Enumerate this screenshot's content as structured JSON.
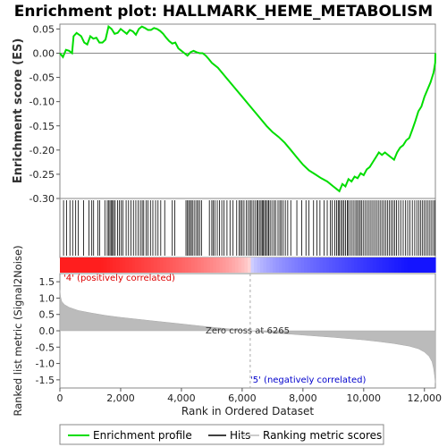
{
  "chart_data": {
    "type": "line",
    "title": "Enrichment plot: HALLMARK_HEME_METABOLISM",
    "es_panel": {
      "ylabel": "Enrichment score (ES)",
      "ylim": [
        -0.3,
        0.06
      ],
      "yticks": [
        -0.3,
        -0.25,
        -0.2,
        -0.15,
        -0.1,
        -0.05,
        0.0,
        0.05
      ],
      "ytick_labels": [
        "-0.30",
        "-0.25",
        "-0.20",
        "-0.15",
        "-0.10",
        "-0.05",
        "0.00",
        "0.05"
      ],
      "series": [
        {
          "name": "Enrichment profile",
          "color": "#00dd00",
          "x": [
            0,
            100,
            200,
            300,
            400,
            450,
            550,
            700,
            800,
            900,
            1000,
            1100,
            1200,
            1300,
            1400,
            1500,
            1600,
            1700,
            1800,
            1900,
            2000,
            2100,
            2200,
            2300,
            2400,
            2500,
            2600,
            2700,
            2800,
            2900,
            3000,
            3100,
            3200,
            3300,
            3400,
            3500,
            3600,
            3700,
            3800,
            3900,
            4000,
            4100,
            4200,
            4300,
            4400,
            4500,
            4600,
            4700,
            4800,
            4900,
            5000,
            5200,
            5400,
            5600,
            5800,
            6000,
            6200,
            6400,
            6600,
            6800,
            7000,
            7200,
            7400,
            7600,
            7800,
            8000,
            8200,
            8400,
            8600,
            8800,
            9000,
            9100,
            9200,
            9300,
            9400,
            9500,
            9600,
            9700,
            9800,
            9900,
            10000,
            10100,
            10200,
            10300,
            10400,
            10500,
            10600,
            10700,
            10800,
            10900,
            11000,
            11100,
            11200,
            11300,
            11400,
            11500,
            11600,
            11700,
            11800,
            11900,
            12000,
            12100,
            12200,
            12300,
            12355,
            12360
          ],
          "y": [
            0.0,
            -0.008,
            0.007,
            0.005,
            0.0,
            0.035,
            0.042,
            0.035,
            0.022,
            0.018,
            0.035,
            0.03,
            0.032,
            0.022,
            0.022,
            0.028,
            0.055,
            0.05,
            0.04,
            0.042,
            0.05,
            0.045,
            0.04,
            0.048,
            0.045,
            0.038,
            0.05,
            0.055,
            0.052,
            0.048,
            0.048,
            0.052,
            0.05,
            0.046,
            0.04,
            0.032,
            0.025,
            0.02,
            0.022,
            0.01,
            0.005,
            0.0,
            -0.005,
            0.002,
            0.005,
            0.002,
            0.0,
            0.0,
            -0.005,
            -0.012,
            -0.02,
            -0.03,
            -0.045,
            -0.06,
            -0.075,
            -0.09,
            -0.105,
            -0.12,
            -0.135,
            -0.15,
            -0.163,
            -0.173,
            -0.185,
            -0.2,
            -0.215,
            -0.23,
            -0.242,
            -0.25,
            -0.258,
            -0.265,
            -0.275,
            -0.28,
            -0.285,
            -0.27,
            -0.275,
            -0.26,
            -0.265,
            -0.255,
            -0.258,
            -0.248,
            -0.252,
            -0.24,
            -0.235,
            -0.225,
            -0.215,
            -0.205,
            -0.21,
            -0.205,
            -0.21,
            -0.215,
            -0.22,
            -0.205,
            -0.195,
            -0.19,
            -0.18,
            -0.175,
            -0.158,
            -0.14,
            -0.12,
            -0.11,
            -0.09,
            -0.075,
            -0.06,
            -0.04,
            -0.02,
            0.0
          ]
        }
      ]
    },
    "hits_panel": {
      "series_name": "Hits",
      "hit_positions": [
        120,
        220,
        330,
        420,
        520,
        600,
        780,
        960,
        1050,
        1110,
        1250,
        1310,
        1480,
        1560,
        1610,
        1650,
        1700,
        1730,
        1770,
        1820,
        1900,
        1960,
        2020,
        2070,
        2180,
        2260,
        2340,
        2420,
        2500,
        2580,
        2650,
        2710,
        2760,
        2840,
        2900,
        2980,
        3060,
        3150,
        3230,
        3320,
        3450,
        3700,
        3780,
        4150,
        4200,
        4240,
        4290,
        4330,
        4380,
        4440,
        4500,
        4550,
        4600,
        4660,
        4920,
        5000,
        5050,
        5100,
        5180,
        5250,
        5330,
        5400,
        5500,
        5600,
        5700,
        5820,
        5900,
        5950,
        6000,
        6060,
        6140,
        6200,
        6260,
        6300,
        6360,
        6420,
        6480,
        6520,
        6570,
        6620,
        6660,
        6700,
        6740,
        6780,
        6830,
        6870,
        6920,
        6980,
        7050,
        7100,
        7180,
        7240,
        7290,
        7350,
        7420,
        7500,
        7600,
        7800,
        7960,
        8100,
        8200,
        8350,
        8460,
        8560,
        8700,
        8800,
        8900,
        8960,
        9050,
        9110,
        9160,
        9200,
        9250,
        9300,
        9350,
        9400,
        9460,
        9500,
        9560,
        9620,
        9680,
        9740,
        9790,
        9840,
        9890,
        9940,
        10000,
        10060,
        10120,
        10180,
        10240,
        10300,
        10360,
        10420,
        10480,
        10540,
        10600,
        10660,
        10720,
        10780,
        10840,
        10900,
        10960,
        11020,
        11080,
        11150,
        11220,
        11300,
        11380,
        11450,
        11520,
        11600,
        11680,
        11750,
        11820,
        11880,
        11940,
        12000,
        12060,
        12120,
        12180,
        12240,
        12300,
        12350
      ]
    },
    "ranked_panel": {
      "ylabel": "Ranked list metric (Signal2Noise)",
      "ylim": [
        -1.75,
        1.75
      ],
      "yticks": [
        1.5,
        1.0,
        0.5,
        0.0,
        -0.5,
        -1.0,
        -1.5
      ],
      "ytick_labels": [
        "1.5",
        "1.0",
        "0.5",
        "0.0",
        "-0.5",
        "-1.0",
        "-1.5"
      ],
      "series_name": "Ranking metric scores",
      "x": [
        0,
        20,
        60,
        150,
        300,
        600,
        1000,
        1500,
        2000,
        3000,
        4000,
        5000,
        6000,
        6265,
        7000,
        8000,
        9000,
        10000,
        10500,
        11000,
        11500,
        11800,
        12000,
        12150,
        12250,
        12300,
        12330,
        12360
      ],
      "y": [
        1.25,
        1.05,
        0.9,
        0.8,
        0.72,
        0.62,
        0.55,
        0.47,
        0.41,
        0.31,
        0.21,
        0.11,
        0.02,
        0.0,
        -0.06,
        -0.13,
        -0.2,
        -0.28,
        -0.33,
        -0.39,
        -0.47,
        -0.55,
        -0.65,
        -0.78,
        -0.95,
        -1.15,
        -1.35,
        -1.6
      ],
      "zero_cross_label": "Zero cross at 6265",
      "zero_cross": 6265,
      "pos_label": "'4' (positively correlated)",
      "neg_label": "'5' (negatively correlated)",
      "pos_color": "#dd0000",
      "neg_color": "#0000cc"
    },
    "x_axis": {
      "label": "Rank in Ordered Dataset",
      "xlim": [
        0,
        12360
      ],
      "ticks": [
        0,
        2000,
        4000,
        6000,
        8000,
        10000,
        12000
      ],
      "tick_labels": [
        "0",
        "2,000",
        "4,000",
        "6,000",
        "8,000",
        "10,000",
        "12,000"
      ]
    },
    "legend": {
      "placement": "bottom",
      "items": [
        {
          "label": "Enrichment profile",
          "color": "#00dd00"
        },
        {
          "label": "Hits",
          "color": "#000000"
        },
        {
          "label": "Ranking metric scores",
          "color": "#bbbbbb"
        }
      ]
    }
  }
}
